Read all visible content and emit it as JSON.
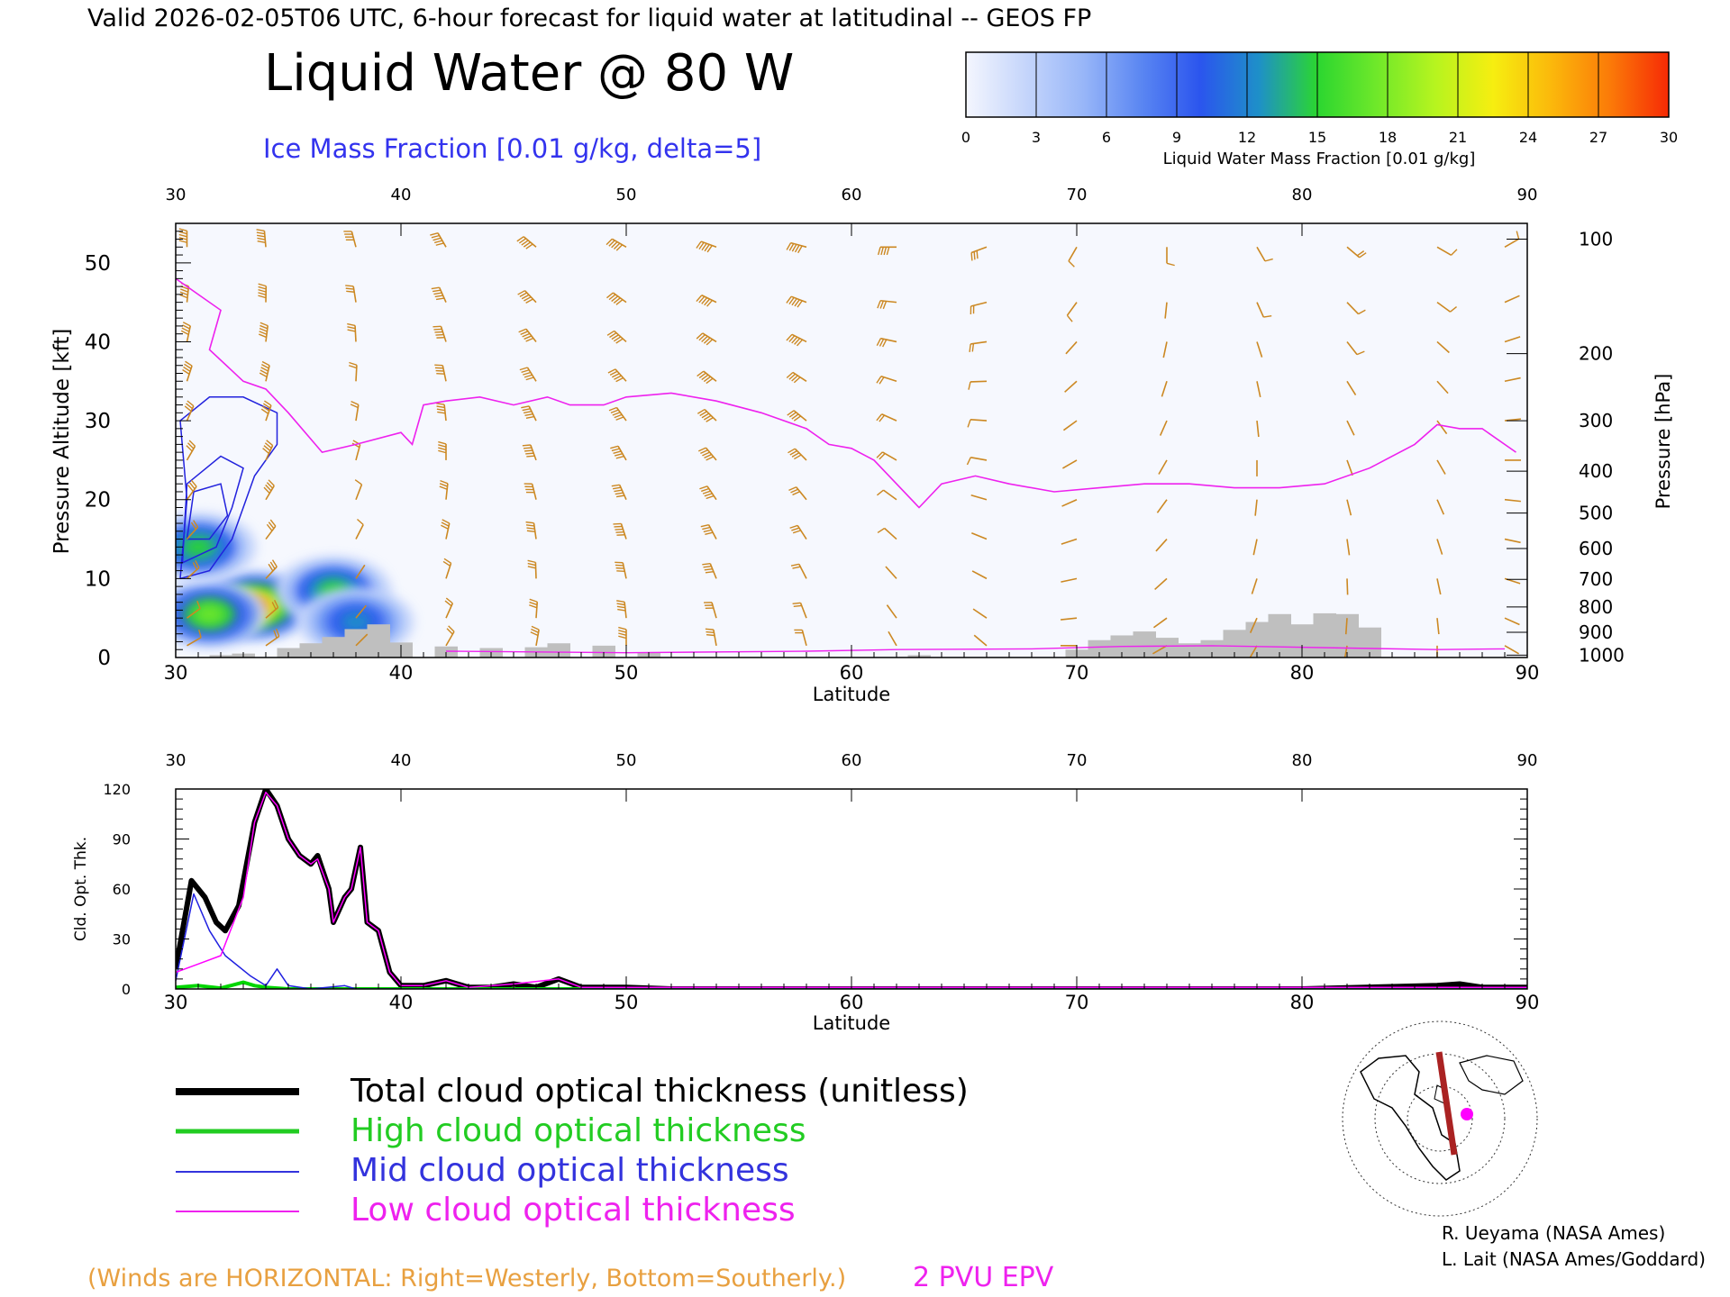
{
  "header": {
    "valid_line": "Valid 2026-02-05T06 UTC, 6-hour forecast for liquid water at latitudinal -- GEOS FP",
    "title": "Liquid Water @ 80 W",
    "subtitle": "Ice Mass Fraction [0.01 g/kg, delta=5]"
  },
  "colorbar": {
    "ticks": [
      "0",
      "3",
      "6",
      "9",
      "12",
      "15",
      "18",
      "21",
      "24",
      "27",
      "30"
    ],
    "label": "Liquid Water Mass Fraction [0.01 g/kg]",
    "colors": [
      "#f4f6fe",
      "#c6d6fb",
      "#98b6f8",
      "#5a86f2",
      "#2b55ee",
      "#1e90c8",
      "#2bd630",
      "#6ee82a",
      "#b6f41f",
      "#f6ee10",
      "#fbb80b",
      "#fb7a08",
      "#f62a05"
    ]
  },
  "chart_data": [
    {
      "type": "heatmap",
      "title": "Liquid Water @ 80 W",
      "xlabel": "Latitude",
      "ylabel": "Pressure Altitude [kft]",
      "y2label": "Pressure [hPa]",
      "xlim": [
        30,
        90
      ],
      "ylim": [
        0,
        55
      ],
      "x_ticks": [
        "30",
        "40",
        "50",
        "60",
        "70",
        "80",
        "90"
      ],
      "y_ticks": [
        "0",
        "10",
        "20",
        "30",
        "40",
        "50"
      ],
      "pressure_ticks": [
        {
          "label": "100",
          "kft": 53
        },
        {
          "label": "200",
          "kft": 38.5
        },
        {
          "label": "300",
          "kft": 30
        },
        {
          "label": "400",
          "kft": 23.6
        },
        {
          "label": "500",
          "kft": 18.3
        },
        {
          "label": "600",
          "kft": 13.8
        },
        {
          "label": "700",
          "kft": 9.9
        },
        {
          "label": "800",
          "kft": 6.4
        },
        {
          "label": "900",
          "kft": 3.2
        },
        {
          "label": "1000",
          "kft": 0.3
        }
      ],
      "liquid_water_blobs": [
        {
          "lat": 33.5,
          "kft": 6.5,
          "value": 27
        },
        {
          "lat": 31.5,
          "kft": 5.5,
          "value": 18
        },
        {
          "lat": 37,
          "kft": 8.5,
          "value": 15
        },
        {
          "lat": 38,
          "kft": 4.5,
          "value": 12
        },
        {
          "lat": 31,
          "kft": 14,
          "value": 15
        }
      ],
      "epv_2pvu_line": [
        [
          30,
          48
        ],
        [
          31,
          46
        ],
        [
          32,
          44
        ],
        [
          31.5,
          39
        ],
        [
          33,
          35
        ],
        [
          34,
          34
        ],
        [
          35,
          31
        ],
        [
          36.5,
          26
        ],
        [
          38,
          27
        ],
        [
          40,
          28.5
        ],
        [
          40.5,
          27
        ],
        [
          41,
          32
        ],
        [
          42,
          32.5
        ],
        [
          43.5,
          33
        ],
        [
          45,
          32
        ],
        [
          46.5,
          33
        ],
        [
          47.5,
          32
        ],
        [
          49,
          32
        ],
        [
          50,
          33
        ],
        [
          52,
          33.5
        ],
        [
          54,
          32.5
        ],
        [
          56,
          31
        ],
        [
          58,
          29
        ],
        [
          59,
          27
        ],
        [
          60,
          26.5
        ],
        [
          61,
          25
        ],
        [
          62,
          22
        ],
        [
          63,
          19
        ],
        [
          64,
          22
        ],
        [
          65.5,
          23
        ],
        [
          67,
          22
        ],
        [
          69,
          21
        ],
        [
          71,
          21.5
        ],
        [
          73,
          22
        ],
        [
          75,
          22
        ],
        [
          77,
          21.5
        ],
        [
          79,
          21.5
        ],
        [
          81,
          22
        ],
        [
          83,
          24
        ],
        [
          85,
          27
        ],
        [
          86,
          29.5
        ],
        [
          87,
          29
        ],
        [
          88,
          29
        ],
        [
          89.5,
          26
        ]
      ],
      "ice_contours": [
        [
          [
            30.2,
            10
          ],
          [
            30.5,
            20
          ],
          [
            30.2,
            30
          ],
          [
            31.5,
            33
          ],
          [
            33,
            33
          ],
          [
            34.5,
            31
          ],
          [
            34.5,
            27
          ],
          [
            33.5,
            23
          ],
          [
            32.5,
            15
          ],
          [
            31.5,
            11
          ],
          [
            30.2,
            10
          ]
        ],
        [
          [
            30.3,
            12
          ],
          [
            30.5,
            22
          ],
          [
            32,
            25.5
          ],
          [
            33,
            24
          ],
          [
            32.5,
            19
          ],
          [
            31.8,
            14
          ],
          [
            30.3,
            12
          ]
        ],
        [
          [
            30.5,
            15
          ],
          [
            30.8,
            21
          ],
          [
            32,
            22
          ],
          [
            32.3,
            18
          ],
          [
            31.5,
            15
          ],
          [
            30.5,
            15
          ]
        ]
      ],
      "topography": [
        [
          32,
          0.3
        ],
        [
          33,
          0.5
        ],
        [
          35,
          1.2
        ],
        [
          36,
          1.8
        ],
        [
          37,
          2.6
        ],
        [
          38,
          3.6
        ],
        [
          39,
          4.2
        ],
        [
          40,
          1.9
        ],
        [
          42,
          1.4
        ],
        [
          44,
          1.2
        ],
        [
          46,
          1.3
        ],
        [
          47,
          1.8
        ],
        [
          49,
          1.5
        ],
        [
          51,
          0.6
        ],
        [
          63,
          0.3
        ],
        [
          70,
          1
        ],
        [
          71,
          2.2
        ],
        [
          72,
          2.8
        ],
        [
          73,
          3.3
        ],
        [
          74,
          2.5
        ],
        [
          75,
          1.8
        ],
        [
          76,
          2.2
        ],
        [
          77,
          3.5
        ],
        [
          78,
          4.5
        ],
        [
          79,
          5.5
        ],
        [
          80,
          4.2
        ],
        [
          81,
          5.6
        ],
        [
          82,
          5.5
        ],
        [
          83,
          3.8
        ]
      ],
      "wind_barbs": [
        {
          "lat": 30.5,
          "kft": 50,
          "dir": 270,
          "kt": 55
        },
        {
          "lat": 34,
          "kft": 45,
          "dir": 265,
          "kt": 65
        },
        {
          "lat": 38,
          "kft": 45,
          "dir": 255,
          "kt": 40
        },
        {
          "lat": 42,
          "kft": 45,
          "dir": 240,
          "kt": 60
        },
        {
          "lat": 46,
          "kft": 45,
          "dir": 220,
          "kt": 70
        },
        {
          "lat": 50,
          "kft": 45,
          "dir": 210,
          "kt": 80
        },
        {
          "lat": 54,
          "kft": 45,
          "dir": 200,
          "kt": 75
        },
        {
          "lat": 58,
          "kft": 45,
          "dir": 195,
          "kt": 60
        },
        {
          "lat": 62,
          "kft": 45,
          "dir": 180,
          "kt": 40
        },
        {
          "lat": 66,
          "kft": 45,
          "dir": 160,
          "kt": 30
        },
        {
          "lat": 70,
          "kft": 45,
          "dir": 120,
          "kt": 15
        },
        {
          "lat": 74,
          "kft": 45,
          "dir": 90,
          "kt": 10
        },
        {
          "lat": 78,
          "kft": 45,
          "dir": 60,
          "kt": 15
        },
        {
          "lat": 82,
          "kft": 45,
          "dir": 40,
          "kt": 20
        },
        {
          "lat": 86,
          "kft": 45,
          "dir": 30,
          "kt": 15
        },
        {
          "lat": 89,
          "kft": 45,
          "dir": 330,
          "kt": 10
        }
      ]
    },
    {
      "type": "line",
      "xlabel": "Latitude",
      "ylabel": "Cld. Opt. Thk.",
      "xlim": [
        30,
        90
      ],
      "ylim": [
        0,
        120
      ],
      "x_ticks": [
        "30",
        "40",
        "50",
        "60",
        "70",
        "80",
        "90"
      ],
      "y_ticks": [
        "0",
        "30",
        "60",
        "90",
        "120"
      ],
      "series": [
        {
          "name": "Total cloud optical thickness (unitless)",
          "color": "#000000",
          "width": 6,
          "points": [
            [
              30,
              12
            ],
            [
              30.7,
              65
            ],
            [
              31.3,
              55
            ],
            [
              31.8,
              40
            ],
            [
              32.2,
              35
            ],
            [
              32.8,
              50
            ],
            [
              33.5,
              100
            ],
            [
              34,
              120
            ],
            [
              34.5,
              110
            ],
            [
              35,
              90
            ],
            [
              35.5,
              80
            ],
            [
              36,
              75
            ],
            [
              36.3,
              80
            ],
            [
              36.8,
              60
            ],
            [
              37,
              40
            ],
            [
              37.5,
              55
            ],
            [
              37.8,
              60
            ],
            [
              38.2,
              85
            ],
            [
              38.5,
              40
            ],
            [
              39,
              35
            ],
            [
              39.5,
              10
            ],
            [
              40,
              2
            ],
            [
              41,
              2
            ],
            [
              42,
              5
            ],
            [
              43,
              1
            ],
            [
              44,
              1
            ],
            [
              45,
              3
            ],
            [
              46,
              1
            ],
            [
              47,
              6
            ],
            [
              48,
              1
            ],
            [
              50,
              1
            ],
            [
              52,
              0
            ],
            [
              60,
              0
            ],
            [
              70,
              0
            ],
            [
              80,
              0
            ],
            [
              86,
              2
            ],
            [
              87,
              3
            ],
            [
              88,
              1
            ],
            [
              90,
              1
            ]
          ]
        },
        {
          "name": "High cloud optical thickness",
          "color": "#00d600",
          "width": 4,
          "points": [
            [
              30,
              1
            ],
            [
              31,
              2
            ],
            [
              32,
              0.5
            ],
            [
              33,
              4
            ],
            [
              33.5,
              2
            ],
            [
              34,
              1
            ],
            [
              35,
              0
            ],
            [
              90,
              0
            ]
          ]
        },
        {
          "name": "Mid cloud optical thickness",
          "color": "#2020e0",
          "width": 1.5,
          "points": [
            [
              30,
              5
            ],
            [
              30.8,
              57
            ],
            [
              31.5,
              35
            ],
            [
              32.2,
              20
            ],
            [
              33.3,
              8
            ],
            [
              34,
              2
            ],
            [
              34.5,
              12
            ],
            [
              35,
              2
            ],
            [
              36,
              0
            ],
            [
              37.5,
              2
            ],
            [
              38,
              0
            ],
            [
              90,
              0
            ]
          ]
        },
        {
          "name": "Low cloud optical thickness",
          "color": "#ff00ff",
          "width": 1.5,
          "points": [
            [
              30,
              10
            ],
            [
              31,
              15
            ],
            [
              32,
              20
            ],
            [
              33,
              55
            ],
            [
              33.5,
              100
            ],
            [
              34,
              118
            ],
            [
              34.5,
              110
            ],
            [
              35,
              90
            ],
            [
              35.5,
              80
            ],
            [
              36,
              75
            ],
            [
              36.3,
              78
            ],
            [
              36.8,
              60
            ],
            [
              37,
              40
            ],
            [
              37.5,
              55
            ],
            [
              37.8,
              60
            ],
            [
              38.2,
              85
            ],
            [
              38.5,
              40
            ],
            [
              39,
              35
            ],
            [
              39.5,
              10
            ],
            [
              40,
              2
            ],
            [
              41,
              2
            ],
            [
              42,
              5
            ],
            [
              43,
              1
            ],
            [
              45,
              3
            ],
            [
              47,
              6
            ],
            [
              48,
              1
            ],
            [
              90,
              1
            ]
          ]
        }
      ]
    }
  ],
  "legend": {
    "items": [
      {
        "label": "Total cloud optical thickness (unitless)",
        "color": "#000000"
      },
      {
        "label": "High cloud optical thickness",
        "color": "#22cc22"
      },
      {
        "label": "Mid cloud optical thickness",
        "color": "#3333dd"
      },
      {
        "label": "Low cloud optical thickness",
        "color": "#ee22ee"
      }
    ]
  },
  "footer": {
    "winds_note": "(Winds are HORIZONTAL: Right=Westerly, Bottom=Southerly.)",
    "epv_label": "2 PVU EPV",
    "credit1": "R. Ueyama (NASA Ames)",
    "credit2": "L. Lait (NASA Ames/Goddard)"
  }
}
